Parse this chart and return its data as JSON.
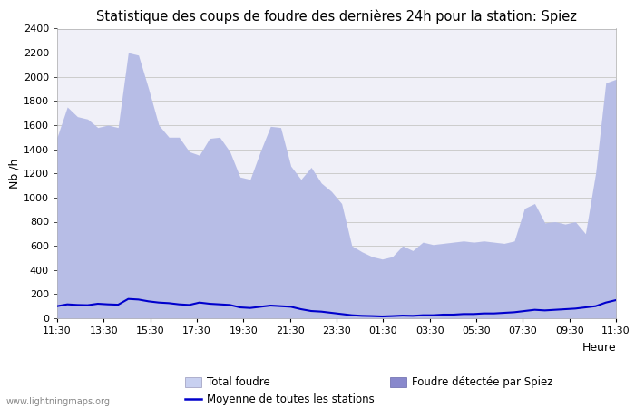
{
  "title": "Statistique des coups de foudre des dernières 24h pour la station: Spiez",
  "xlabel": "Heure",
  "ylabel": "Nb /h",
  "xlim_labels": [
    "11:30",
    "13:30",
    "15:30",
    "17:30",
    "19:30",
    "21:30",
    "23:30",
    "01:30",
    "03:30",
    "05:30",
    "07:30",
    "09:30",
    "11:30"
  ],
  "ylim": [
    0,
    2400
  ],
  "yticks": [
    0,
    200,
    400,
    600,
    800,
    1000,
    1200,
    1400,
    1600,
    1800,
    2000,
    2200,
    2400
  ],
  "bg_color": "#ffffff",
  "plot_bg_color": "#f0f0f8",
  "grid_color": "#cccccc",
  "total_foudre_color": "#c8d0f0",
  "spiez_color": "#8888cc",
  "moyenne_color": "#0000cc",
  "watermark": "www.lightningmaps.org",
  "total_foudre_values": [
    1500,
    1750,
    1670,
    1650,
    1580,
    1600,
    1580,
    2200,
    2180,
    1900,
    1600,
    1500,
    1500,
    1380,
    1350,
    1490,
    1500,
    1380,
    1170,
    1150,
    1380,
    1590,
    1580,
    1260,
    1150,
    1250,
    1120,
    1050,
    950,
    600,
    550,
    510,
    490,
    510,
    600,
    560,
    630,
    610,
    620,
    630,
    640,
    630,
    640,
    630,
    620,
    640,
    910,
    950,
    790,
    800,
    780,
    800,
    700,
    1200,
    1950,
    1980
  ],
  "spiez_values": [
    1500,
    1750,
    1670,
    1650,
    1580,
    1600,
    1580,
    2200,
    2180,
    1900,
    1600,
    1500,
    1500,
    1380,
    1350,
    1490,
    1500,
    1380,
    1170,
    1150,
    1380,
    1590,
    1580,
    1260,
    1150,
    1250,
    1120,
    1050,
    950,
    600,
    550,
    510,
    490,
    510,
    600,
    560,
    630,
    610,
    620,
    630,
    640,
    630,
    640,
    630,
    620,
    640,
    910,
    950,
    790,
    800,
    780,
    800,
    700,
    1200,
    1950,
    1980
  ],
  "moyenne_values": [
    100,
    115,
    110,
    108,
    120,
    115,
    112,
    160,
    155,
    140,
    130,
    125,
    115,
    110,
    130,
    120,
    115,
    110,
    90,
    85,
    95,
    105,
    100,
    95,
    75,
    60,
    55,
    45,
    35,
    25,
    20,
    18,
    15,
    18,
    22,
    20,
    25,
    25,
    30,
    30,
    35,
    35,
    40,
    40,
    45,
    50,
    60,
    70,
    65,
    70,
    75,
    80,
    90,
    100,
    130,
    150
  ]
}
